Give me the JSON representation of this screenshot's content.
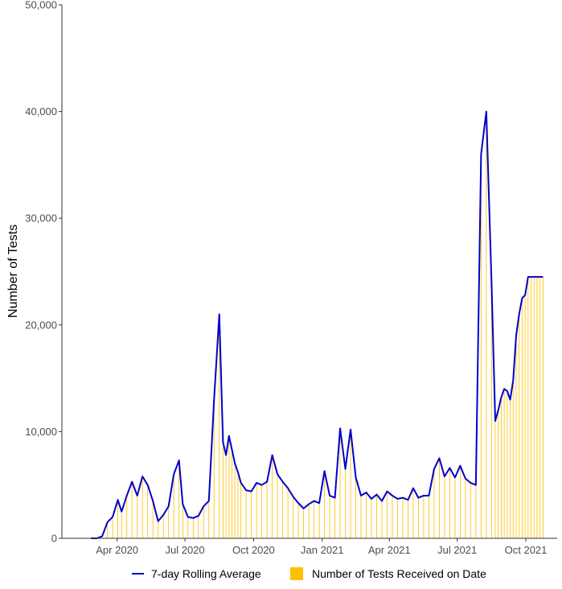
{
  "chart_data": {
    "type": "bar",
    "ylabel": "Number of Tests",
    "xlabel": "",
    "ylim": [
      0,
      50000
    ],
    "y_ticks": [
      0,
      10000,
      20000,
      30000,
      40000,
      50000
    ],
    "y_tick_labels": [
      "0",
      "10,000",
      "20,000",
      "30,000",
      "40,000",
      "50,000"
    ],
    "x_tick_labels": [
      "Apr 2020",
      "Jul 2020",
      "Oct 2020",
      "Jan 2021",
      "Apr 2021",
      "Jul 2021",
      "Oct 2021"
    ],
    "x_tick_dates": [
      "2020-04-01",
      "2020-07-01",
      "2020-10-01",
      "2021-01-01",
      "2021-04-01",
      "2021-07-01",
      "2021-10-01"
    ],
    "x_range": [
      "2020-01-18",
      "2021-11-12"
    ],
    "grid": false,
    "legend_position": "bottom",
    "series": [
      {
        "name": "7-day Rolling Average",
        "kind": "line",
        "color": "#0000cc",
        "x": [
          "2020-02-26",
          "2020-03-05",
          "2020-03-12",
          "2020-03-19",
          "2020-03-26",
          "2020-04-02",
          "2020-04-07",
          "2020-04-14",
          "2020-04-21",
          "2020-04-28",
          "2020-05-05",
          "2020-05-12",
          "2020-05-19",
          "2020-05-26",
          "2020-06-02",
          "2020-06-09",
          "2020-06-16",
          "2020-06-23",
          "2020-06-28",
          "2020-07-05",
          "2020-07-12",
          "2020-07-19",
          "2020-07-26",
          "2020-08-02",
          "2020-08-09",
          "2020-08-16",
          "2020-08-21",
          "2020-08-25",
          "2020-08-29",
          "2020-09-02",
          "2020-09-06",
          "2020-09-10",
          "2020-09-14",
          "2020-09-21",
          "2020-09-28",
          "2020-10-05",
          "2020-10-12",
          "2020-10-19",
          "2020-10-26",
          "2020-11-02",
          "2020-11-09",
          "2020-11-16",
          "2020-11-23",
          "2020-11-30",
          "2020-12-07",
          "2020-12-14",
          "2020-12-21",
          "2020-12-28",
          "2021-01-04",
          "2021-01-11",
          "2021-01-18",
          "2021-01-25",
          "2021-02-01",
          "2021-02-08",
          "2021-02-15",
          "2021-02-22",
          "2021-03-01",
          "2021-03-08",
          "2021-03-15",
          "2021-03-22",
          "2021-03-29",
          "2021-04-05",
          "2021-04-12",
          "2021-04-19",
          "2021-04-26",
          "2021-05-03",
          "2021-05-10",
          "2021-05-17",
          "2021-05-24",
          "2021-05-31",
          "2021-06-07",
          "2021-06-14",
          "2021-06-21",
          "2021-06-28",
          "2021-07-05",
          "2021-07-12",
          "2021-07-19",
          "2021-07-26",
          "2021-08-02",
          "2021-08-09",
          "2021-08-16",
          "2021-08-21",
          "2021-08-25",
          "2021-08-29",
          "2021-09-02",
          "2021-09-06",
          "2021-09-10",
          "2021-09-14",
          "2021-09-18",
          "2021-09-22",
          "2021-09-26",
          "2021-09-30",
          "2021-10-04",
          "2021-10-08",
          "2021-10-12",
          "2021-10-16",
          "2021-10-20",
          "2021-10-24"
        ],
        "values": [
          0,
          0,
          200,
          1500,
          2000,
          3600,
          2500,
          4000,
          5300,
          4000,
          5800,
          5000,
          3500,
          1600,
          2200,
          3000,
          6000,
          7300,
          3200,
          2000,
          1900,
          2100,
          3000,
          3500,
          13000,
          21000,
          9000,
          7800,
          9600,
          8300,
          7000,
          6200,
          5200,
          4500,
          4400,
          5200,
          5000,
          5300,
          7800,
          6000,
          5300,
          4700,
          3900,
          3300,
          2800,
          3200,
          3500,
          3300,
          6300,
          4000,
          3800,
          10300,
          6500,
          10200,
          5700,
          4000,
          4300,
          3700,
          4100,
          3500,
          4400,
          4000,
          3700,
          3800,
          3600,
          4700,
          3800,
          4000,
          4000,
          6500,
          7500,
          5800,
          6600,
          5700,
          6800,
          5600,
          5200,
          5000,
          36000,
          40000,
          24000,
          11000,
          12000,
          13200,
          14000,
          13800,
          13000,
          14800,
          19000,
          21000,
          22500,
          22800,
          24500,
          24500,
          24500,
          24500,
          24500,
          24500
        ]
      },
      {
        "name": "Number of Tests Received on Date",
        "kind": "bar",
        "color": "#ffc000",
        "x": [
          "2020-02-26",
          "2020-03-05",
          "2020-03-12",
          "2020-03-19",
          "2020-03-26",
          "2020-04-02",
          "2020-04-07",
          "2020-04-14",
          "2020-04-21",
          "2020-04-28",
          "2020-05-05",
          "2020-05-12",
          "2020-05-19",
          "2020-05-26",
          "2020-06-02",
          "2020-06-09",
          "2020-06-16",
          "2020-06-23",
          "2020-06-28",
          "2020-07-05",
          "2020-07-12",
          "2020-07-19",
          "2020-07-26",
          "2020-08-02",
          "2020-08-09",
          "2020-08-16",
          "2020-08-21",
          "2020-08-25",
          "2020-08-29",
          "2020-09-02",
          "2020-09-06",
          "2020-09-10",
          "2020-09-14",
          "2020-09-21",
          "2020-09-28",
          "2020-10-05",
          "2020-10-12",
          "2020-10-19",
          "2020-10-26",
          "2020-11-02",
          "2020-11-09",
          "2020-11-16",
          "2020-11-23",
          "2020-11-30",
          "2020-12-07",
          "2020-12-14",
          "2020-12-21",
          "2020-12-28",
          "2021-01-04",
          "2021-01-11",
          "2021-01-18",
          "2021-01-25",
          "2021-02-01",
          "2021-02-08",
          "2021-02-15",
          "2021-02-22",
          "2021-03-01",
          "2021-03-08",
          "2021-03-15",
          "2021-03-22",
          "2021-03-29",
          "2021-04-05",
          "2021-04-12",
          "2021-04-19",
          "2021-04-26",
          "2021-05-03",
          "2021-05-10",
          "2021-05-17",
          "2021-05-24",
          "2021-05-31",
          "2021-06-07",
          "2021-06-14",
          "2021-06-21",
          "2021-06-28",
          "2021-07-05",
          "2021-07-12",
          "2021-07-19",
          "2021-07-26",
          "2021-08-02",
          "2021-08-09",
          "2021-08-16",
          "2021-08-21",
          "2021-08-25",
          "2021-08-29",
          "2021-09-02",
          "2021-09-06",
          "2021-09-10",
          "2021-09-14",
          "2021-09-18",
          "2021-09-22",
          "2021-09-26",
          "2021-09-30",
          "2021-10-04",
          "2021-10-08",
          "2021-10-12",
          "2021-10-16",
          "2021-10-20",
          "2021-10-24"
        ],
        "values": [
          0,
          0,
          200,
          1500,
          2000,
          3600,
          2500,
          4000,
          5300,
          4000,
          5800,
          5000,
          3500,
          1600,
          2200,
          3000,
          6000,
          7300,
          3200,
          2000,
          1900,
          2100,
          3000,
          3500,
          13000,
          21000,
          9000,
          7800,
          9600,
          8300,
          7000,
          6200,
          5200,
          4500,
          4400,
          5200,
          5000,
          5300,
          7800,
          6000,
          5300,
          4700,
          3900,
          3300,
          2800,
          3200,
          3500,
          3300,
          6300,
          4000,
          3800,
          10300,
          6500,
          10200,
          5700,
          4000,
          4300,
          3700,
          4100,
          3500,
          4400,
          4000,
          3700,
          3800,
          3600,
          4700,
          3800,
          4000,
          4000,
          6500,
          7500,
          5800,
          6600,
          5700,
          6800,
          5600,
          5200,
          5000,
          36000,
          40000,
          24000,
          11000,
          12000,
          13200,
          14000,
          13800,
          13000,
          14800,
          19000,
          21000,
          22500,
          22800,
          24500,
          24500,
          24500,
          24500,
          24500,
          24500
        ]
      }
    ]
  }
}
